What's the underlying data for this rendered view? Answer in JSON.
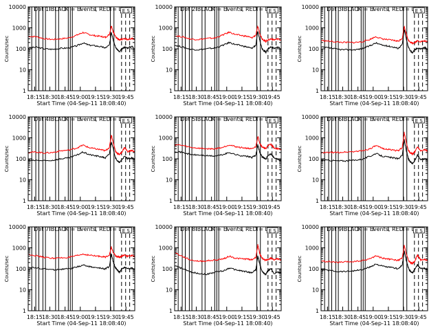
{
  "chart_data": {
    "type": "line",
    "shared": {
      "yscale": "log",
      "ylim": [
        1,
        10000
      ],
      "y_ticks": [
        1,
        10,
        100,
        1000,
        10000
      ],
      "y_tick_labels": [
        "1",
        "10",
        "100",
        "1000",
        "10000"
      ],
      "ylabel": "Counts/sec",
      "xlabel": "Start Time (04-Sep-11 18:08:40)",
      "x_ticks_min": [
        6.33,
        21.33,
        36.33,
        51.33,
        66.33,
        81.33,
        96.33
      ],
      "x_tick_labels": [
        "18:15",
        "18:30",
        "18:45",
        "19:00",
        "19:15",
        "19:30",
        "19:45"
      ],
      "x_range_min": [
        0,
        105
      ],
      "annotation": "E S",
      "series": [
        {
          "name": "Events",
          "color": "#000000"
        },
        {
          "name": "LLD",
          "color": "#ff0000"
        }
      ],
      "solid_markers_min": [
        -0.5,
        3.5,
        7.5,
        10.5,
        14.5,
        17.0,
        27.0,
        30.0,
        39.5,
        41.5,
        43.5,
        81.0,
        84.5
      ],
      "dashed_markers_min": [
        92.0,
        96.0,
        100.0
      ]
    },
    "panels": [
      {
        "title": "Det 1  BLACK = Events, RED = LLD",
        "events_x_min": [
          0,
          8,
          16,
          24,
          32,
          40,
          48,
          54,
          60,
          66,
          72,
          76,
          80,
          82,
          84,
          86,
          88,
          90,
          92,
          95,
          98,
          102,
          105
        ],
        "events_y": [
          110,
          120,
          100,
          95,
          105,
          110,
          140,
          190,
          150,
          140,
          125,
          110,
          150,
          650,
          250,
          120,
          90,
          70,
          95,
          120,
          110,
          130,
          105
        ],
        "lld_x_min": [
          0,
          8,
          16,
          24,
          32,
          40,
          48,
          54,
          60,
          66,
          72,
          76,
          80,
          82,
          84,
          86,
          88,
          90,
          92,
          95,
          98,
          102,
          105
        ],
        "lld_y": [
          390,
          380,
          300,
          280,
          300,
          330,
          450,
          600,
          480,
          420,
          390,
          350,
          480,
          1300,
          600,
          400,
          300,
          260,
          280,
          300,
          280,
          310,
          280
        ]
      },
      {
        "title": "Det 2  BLACK = Events, RED = LLD",
        "events_x_min": [
          0,
          8,
          16,
          24,
          32,
          40,
          48,
          54,
          60,
          66,
          72,
          76,
          80,
          82,
          84,
          86,
          88,
          90,
          92,
          95,
          98,
          102,
          105
        ],
        "events_y": [
          150,
          120,
          95,
          90,
          100,
          110,
          150,
          200,
          160,
          140,
          120,
          105,
          150,
          700,
          250,
          110,
          80,
          70,
          100,
          125,
          105,
          120,
          100
        ],
        "lld_x_min": [
          0,
          8,
          16,
          24,
          32,
          40,
          48,
          54,
          60,
          66,
          72,
          76,
          80,
          82,
          84,
          86,
          88,
          90,
          92,
          95,
          98,
          102,
          105
        ],
        "lld_y": [
          420,
          370,
          290,
          280,
          310,
          330,
          470,
          620,
          480,
          430,
          390,
          330,
          450,
          1200,
          520,
          320,
          250,
          230,
          260,
          300,
          270,
          300,
          260
        ]
      },
      {
        "title": "Det 3  BLACK = Events, RED = LLD",
        "events_x_min": [
          0,
          8,
          16,
          24,
          32,
          40,
          48,
          54,
          60,
          66,
          72,
          76,
          80,
          82,
          84,
          86,
          88,
          90,
          92,
          95,
          98,
          102,
          105
        ],
        "events_y": [
          120,
          110,
          95,
          90,
          90,
          100,
          140,
          190,
          150,
          135,
          120,
          105,
          160,
          850,
          300,
          120,
          80,
          65,
          85,
          110,
          100,
          115,
          95
        ],
        "lld_x_min": [
          0,
          8,
          16,
          24,
          32,
          40,
          48,
          54,
          60,
          66,
          72,
          76,
          80,
          82,
          84,
          86,
          88,
          90,
          92,
          95,
          98,
          102,
          105
        ],
        "lld_y": [
          250,
          230,
          210,
          200,
          200,
          215,
          280,
          380,
          300,
          270,
          250,
          230,
          320,
          1200,
          500,
          260,
          200,
          185,
          200,
          240,
          220,
          235,
          215
        ]
      },
      {
        "title": "Det 4  BLACK = Events, RED = LLD",
        "events_x_min": [
          0,
          8,
          16,
          24,
          32,
          40,
          48,
          54,
          60,
          66,
          72,
          76,
          80,
          82,
          84,
          86,
          88,
          90,
          92,
          95,
          98,
          102,
          105
        ],
        "events_y": [
          80,
          85,
          80,
          85,
          100,
          110,
          150,
          210,
          160,
          140,
          125,
          110,
          170,
          650,
          280,
          110,
          80,
          65,
          90,
          130,
          100,
          110,
          95
        ],
        "lld_x_min": [
          0,
          8,
          16,
          24,
          32,
          40,
          48,
          54,
          60,
          66,
          72,
          76,
          80,
          82,
          84,
          86,
          88,
          90,
          92,
          95,
          98,
          102,
          105
        ],
        "lld_y": [
          200,
          210,
          190,
          200,
          240,
          260,
          330,
          450,
          340,
          300,
          270,
          240,
          350,
          1400,
          550,
          230,
          180,
          160,
          200,
          350,
          220,
          250,
          220
        ]
      },
      {
        "title": "Det 5  BLACK = Events, RED = LLD",
        "events_x_min": [
          0,
          8,
          16,
          24,
          32,
          40,
          48,
          54,
          60,
          66,
          72,
          76,
          80,
          82,
          84,
          86,
          88,
          90,
          92,
          95,
          98,
          102,
          105
        ],
        "events_y": [
          230,
          200,
          160,
          150,
          140,
          135,
          160,
          200,
          160,
          140,
          130,
          115,
          150,
          450,
          200,
          130,
          110,
          95,
          140,
          180,
          110,
          95,
          85
        ],
        "lld_x_min": [
          0,
          8,
          16,
          24,
          32,
          40,
          48,
          54,
          60,
          66,
          72,
          76,
          80,
          82,
          84,
          86,
          88,
          90,
          92,
          95,
          98,
          102,
          105
        ],
        "lld_y": [
          480,
          430,
          350,
          320,
          300,
          300,
          360,
          470,
          380,
          340,
          320,
          290,
          380,
          1200,
          550,
          380,
          330,
          300,
          450,
          480,
          330,
          300,
          280
        ]
      },
      {
        "title": "Det 6  BLACK = Events, RED = LLD",
        "events_x_min": [
          0,
          8,
          16,
          24,
          32,
          40,
          48,
          54,
          60,
          66,
          72,
          76,
          80,
          82,
          84,
          86,
          88,
          90,
          92,
          95,
          98,
          102,
          105
        ],
        "events_y": [
          85,
          85,
          80,
          80,
          85,
          95,
          130,
          180,
          135,
          120,
          110,
          100,
          150,
          800,
          250,
          100,
          70,
          60,
          80,
          150,
          95,
          100,
          90
        ],
        "lld_x_min": [
          0,
          8,
          16,
          24,
          32,
          40,
          48,
          54,
          60,
          66,
          72,
          76,
          80,
          82,
          84,
          86,
          88,
          90,
          92,
          95,
          98,
          102,
          105
        ],
        "lld_y": [
          190,
          200,
          200,
          210,
          220,
          240,
          300,
          420,
          320,
          280,
          260,
          240,
          350,
          1800,
          600,
          250,
          190,
          170,
          200,
          380,
          250,
          270,
          240
        ]
      },
      {
        "title": "Det 7  BLACK = Events, RED = LLD",
        "events_x_min": [
          0,
          8,
          16,
          24,
          32,
          40,
          48,
          54,
          60,
          66,
          72,
          76,
          80,
          82,
          84,
          86,
          88,
          90,
          92,
          95,
          98,
          102,
          105
        ],
        "events_y": [
          120,
          110,
          100,
          90,
          95,
          100,
          120,
          150,
          130,
          115,
          105,
          100,
          130,
          500,
          200,
          110,
          85,
          70,
          95,
          120,
          100,
          110,
          95
        ],
        "lld_x_min": [
          0,
          8,
          16,
          24,
          32,
          40,
          48,
          54,
          60,
          66,
          72,
          76,
          80,
          82,
          84,
          86,
          88,
          90,
          92,
          95,
          98,
          102,
          105
        ],
        "lld_y": [
          500,
          420,
          350,
          320,
          330,
          350,
          420,
          500,
          450,
          410,
          390,
          360,
          470,
          1100,
          560,
          420,
          380,
          350,
          400,
          450,
          400,
          430,
          400
        ]
      },
      {
        "title": "Det 8  BLACK = Events, RED = LLD",
        "events_x_min": [
          0,
          8,
          16,
          24,
          32,
          40,
          48,
          54,
          60,
          66,
          72,
          76,
          80,
          82,
          84,
          86,
          88,
          90,
          92,
          95,
          98,
          102,
          105
        ],
        "events_y": [
          140,
          100,
          70,
          60,
          55,
          70,
          80,
          110,
          90,
          80,
          70,
          65,
          90,
          400,
          160,
          80,
          60,
          55,
          80,
          100,
          60,
          70,
          60
        ],
        "lld_x_min": [
          0,
          8,
          16,
          24,
          32,
          40,
          48,
          54,
          60,
          66,
          72,
          76,
          80,
          82,
          84,
          86,
          88,
          90,
          92,
          95,
          98,
          102,
          105
        ],
        "lld_y": [
          600,
          380,
          260,
          230,
          240,
          260,
          300,
          400,
          320,
          300,
          290,
          270,
          350,
          1400,
          500,
          330,
          280,
          250,
          280,
          320,
          270,
          300,
          270
        ]
      },
      {
        "title": "Det 9  BLACK = Events, RED = LLD",
        "events_x_min": [
          0,
          8,
          16,
          24,
          32,
          40,
          48,
          54,
          60,
          66,
          72,
          76,
          80,
          82,
          84,
          86,
          88,
          90,
          92,
          95,
          98,
          102,
          105
        ],
        "events_y": [
          90,
          85,
          75,
          75,
          80,
          90,
          120,
          170,
          135,
          120,
          110,
          100,
          150,
          700,
          250,
          110,
          75,
          65,
          90,
          160,
          100,
          105,
          95
        ],
        "lld_x_min": [
          0,
          8,
          16,
          24,
          32,
          40,
          48,
          54,
          60,
          66,
          72,
          76,
          80,
          82,
          84,
          86,
          88,
          90,
          92,
          95,
          98,
          102,
          105
        ],
        "lld_y": [
          230,
          220,
          200,
          210,
          220,
          240,
          300,
          420,
          330,
          290,
          270,
          250,
          330,
          1300,
          520,
          260,
          200,
          180,
          220,
          450,
          270,
          280,
          250
        ]
      }
    ]
  }
}
